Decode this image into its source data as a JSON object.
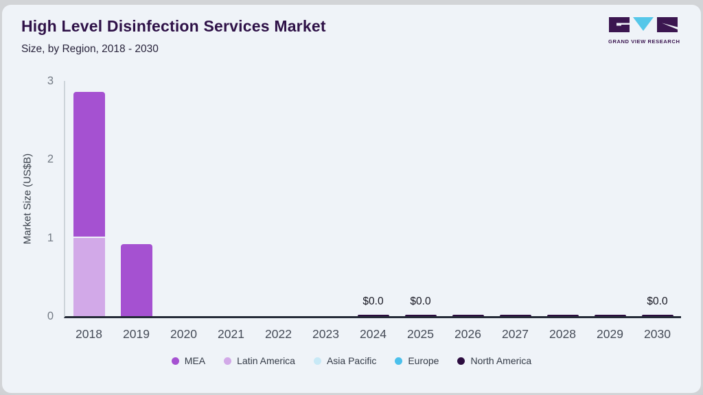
{
  "header": {
    "title": "High Level Disinfection Services Market",
    "subtitle": "Size, by Region, 2018 - 2030",
    "brand": {
      "name": "GRAND VIEW RESEARCH"
    }
  },
  "chart_data": {
    "type": "bar",
    "stacked": true,
    "title": "High Level Disinfection Services Market Size, by Region, 2018 - 2030",
    "xlabel": "",
    "ylabel": "Market Size (US$B)",
    "ylim": [
      0,
      3
    ],
    "yticks": [
      0,
      1,
      2,
      3
    ],
    "grid": false,
    "legend_position": "bottom",
    "categories": [
      "2018",
      "2019",
      "2020",
      "2021",
      "2022",
      "2023",
      "2024",
      "2025",
      "2026",
      "2027",
      "2028",
      "2029",
      "2030"
    ],
    "series": [
      {
        "name": "MEA",
        "color": "#a551d1",
        "values": [
          1.84,
          0.92,
          0,
          0,
          0,
          0,
          0,
          0,
          0,
          0,
          0,
          0,
          0
        ]
      },
      {
        "name": "Latin America",
        "color": "#d2a9e8",
        "values": [
          1.0,
          0,
          0,
          0,
          0,
          0,
          0,
          0,
          0,
          0,
          0,
          0,
          0
        ]
      },
      {
        "name": "Asia Pacific",
        "color": "#c8e9f6",
        "values": [
          0,
          0,
          0,
          0,
          0,
          0,
          0,
          0,
          0,
          0,
          0,
          0,
          0
        ]
      },
      {
        "name": "Europe",
        "color": "#4bc0ec",
        "values": [
          0,
          0,
          0,
          0,
          0,
          0,
          0,
          0,
          0,
          0,
          0,
          0,
          0
        ]
      },
      {
        "name": "North America",
        "color": "#2c0c3f",
        "values": [
          0,
          0,
          0,
          0,
          0,
          0,
          0.02,
          0.02,
          0.02,
          0.02,
          0.02,
          0.02,
          0.02
        ]
      }
    ],
    "stack_order_bottom_to_top": [
      "North America",
      "Europe",
      "Asia Pacific",
      "Latin America",
      "MEA"
    ],
    "bar_labels": [
      {
        "category": "2024",
        "text": "$0.0"
      },
      {
        "category": "2025",
        "text": "$0.0"
      },
      {
        "category": "2030",
        "text": "$0.0"
      }
    ]
  },
  "legend": {
    "items": [
      {
        "label": "MEA",
        "color": "#a551d1"
      },
      {
        "label": "Latin America",
        "color": "#d2a9e8"
      },
      {
        "label": "Asia Pacific",
        "color": "#c8e9f6"
      },
      {
        "label": "Europe",
        "color": "#4bc0ec"
      },
      {
        "label": "North America",
        "color": "#2c0c3f"
      }
    ]
  }
}
